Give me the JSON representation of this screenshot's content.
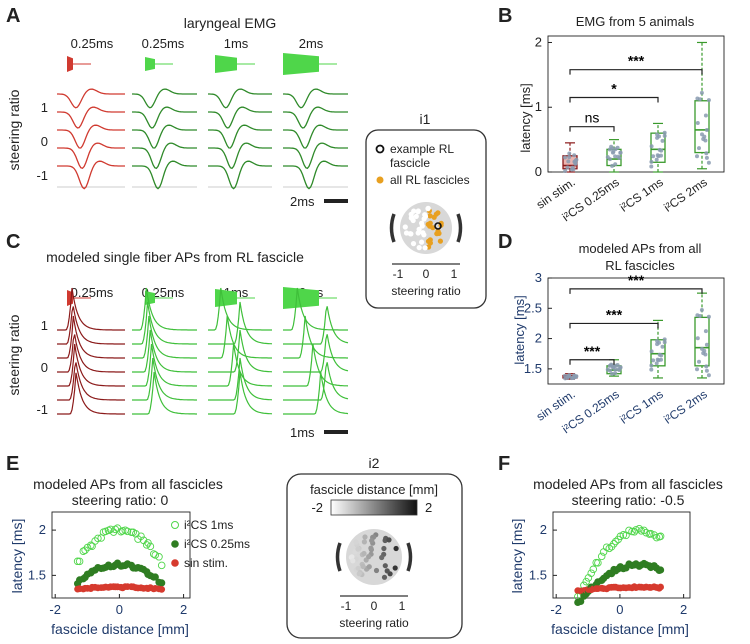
{
  "panels": {
    "A": "A",
    "B": "B",
    "C": "C",
    "D": "D",
    "E": "E",
    "F": "F",
    "i1": "i1",
    "i2": "i2"
  },
  "panelA": {
    "title": "laryngeal EMG",
    "ylabel": "steering ratio",
    "ticks": [
      "1",
      "0",
      "-1"
    ],
    "column_labels": [
      "0.25ms",
      "0.25ms",
      "1ms",
      "2ms"
    ],
    "scalebar": "2ms"
  },
  "panelC": {
    "title": "modeled single fiber APs from RL fascicle",
    "ylabel": "steering ratio",
    "ticks": [
      "1",
      "0",
      "-1"
    ],
    "column_labels": [
      "0.25ms",
      "0.25ms",
      "1ms",
      "2ms"
    ],
    "scalebar": "1ms"
  },
  "inset_i1": {
    "legend_example": "example RL",
    "legend_example2": "fascicle",
    "legend_all": "all RL fascicles",
    "axis_ticks": [
      "-1",
      "0",
      "1"
    ],
    "axis_label": "steering ratio"
  },
  "inset_i2": {
    "title": "fascicle distance [mm]",
    "colorbar_min": "-2",
    "colorbar_max": "2",
    "axis_ticks": [
      "-1",
      "0",
      "1"
    ],
    "axis_label": "steering ratio"
  },
  "colors": {
    "sin": "#c0392b",
    "ics": "#3a9a2c",
    "light_green": "#4fd64a",
    "gray_point": "#8a9bb0",
    "orange": "#e8a020"
  },
  "chart_data": [
    {
      "id": "B",
      "type": "box",
      "title": "EMG from 5 animals",
      "ylabel": "latency [ms]",
      "ylim": [
        0,
        2.1
      ],
      "yticks": [
        0,
        1,
        2
      ],
      "categories": [
        "sin stim.",
        "i²CS 0.25ms",
        "i²CS 1ms",
        "i²CS 2ms"
      ],
      "boxes": [
        {
          "min": 0.0,
          "q1": 0.05,
          "median": 0.1,
          "q3": 0.25,
          "max": 0.45
        },
        {
          "min": 0.0,
          "q1": 0.1,
          "median": 0.2,
          "q3": 0.35,
          "max": 0.5
        },
        {
          "min": 0.0,
          "q1": 0.15,
          "median": 0.35,
          "q3": 0.6,
          "max": 0.75
        },
        {
          "min": 0.05,
          "q1": 0.3,
          "median": 0.65,
          "q3": 1.1,
          "max": 2.0
        }
      ],
      "significance": [
        {
          "from": 0,
          "to": 1,
          "label": "ns",
          "y": 0.7
        },
        {
          "from": 0,
          "to": 2,
          "label": "*",
          "y": 1.15
        },
        {
          "from": 0,
          "to": 3,
          "label": "***",
          "y": 1.58
        }
      ]
    },
    {
      "id": "D",
      "type": "box",
      "title": "modeled APs from all",
      "title2": "RL fascicles",
      "ylabel": "latency [ms]",
      "ylim": [
        1.25,
        3.0
      ],
      "yticks": [
        1.5,
        2,
        2.5,
        3
      ],
      "ytick_labels": [
        "1.5",
        "2",
        "2.5",
        "3"
      ],
      "categories": [
        "sin stim.",
        "i²CS 0.25ms",
        "i²CS 1ms",
        "i²CS 2ms"
      ],
      "boxes": [
        {
          "min": 1.33,
          "q1": 1.35,
          "median": 1.37,
          "q3": 1.39,
          "max": 1.42
        },
        {
          "min": 1.38,
          "q1": 1.42,
          "median": 1.48,
          "q3": 1.55,
          "max": 1.65
        },
        {
          "min": 1.35,
          "q1": 1.55,
          "median": 1.75,
          "q3": 1.98,
          "max": 2.3
        },
        {
          "min": 1.35,
          "q1": 1.55,
          "median": 1.85,
          "q3": 2.35,
          "max": 2.75
        }
      ],
      "significance": [
        {
          "from": 0,
          "to": 1,
          "label": "***",
          "y": 1.65
        },
        {
          "from": 0,
          "to": 2,
          "label": "***",
          "y": 2.25
        },
        {
          "from": 0,
          "to": 3,
          "label": "***",
          "y": 2.82
        }
      ]
    },
    {
      "id": "E",
      "type": "scatter",
      "title": "modeled APs from all fascicles",
      "title2": "steering ratio: 0",
      "xlabel": "fascicle distance [mm]",
      "ylabel": "latency [ms]",
      "xlim": [
        -2.1,
        2.2
      ],
      "ylim": [
        1.25,
        2.2
      ],
      "xticks": [
        -2,
        0,
        2
      ],
      "yticks": [
        1.5,
        2
      ],
      "legend": [
        "i²CS 1ms",
        "i²CS 0.25ms",
        "sin stim."
      ],
      "center": 0.0
    },
    {
      "id": "F",
      "type": "scatter",
      "title": "modeled APs from all fascicles",
      "title2": "steering ratio: -0.5",
      "xlabel": "fascicle distance [mm]",
      "ylabel": "latency [ms]",
      "xlim": [
        -2.1,
        2.2
      ],
      "ylim": [
        1.25,
        2.2
      ],
      "xticks": [
        -2,
        0,
        2
      ],
      "yticks": [
        1.5,
        2
      ],
      "center": 0.6
    }
  ]
}
